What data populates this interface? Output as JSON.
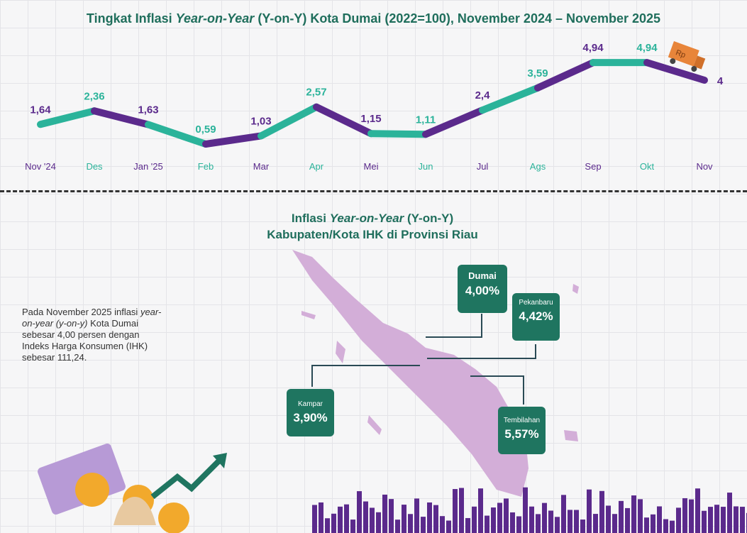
{
  "chart_title": {
    "prefix": "Tingkat Inflasi ",
    "italic": "Year-on-Year",
    "suffix": " (Y-on-Y) Kota Dumai (2022=100), November 2024 – November 2025"
  },
  "map_title": {
    "line1_prefix": "Inflasi ",
    "line1_italic": "Year-on-Year",
    "line1_suffix": " (Y-on-Y)",
    "line2": "Kabupaten/Kota IHK di Provinsi Riau"
  },
  "description": {
    "p1": "Pada November 2025 inflasi ",
    "i1": "year-on-year (y-on-y)",
    "p2": " Kota Dumai sebesar 4,00 persen dengan Indeks Harga Konsumen (IHK) sebesar 111,24."
  },
  "map_boxes": [
    {
      "name": "Dumai",
      "value": "4,00%"
    },
    {
      "name": "Pekanbaru",
      "value": "4,42%"
    },
    {
      "name": "Kampar",
      "value": "3,90%"
    },
    {
      "name": "Tembilahan",
      "value": "5,57%"
    }
  ],
  "colors": {
    "teal": "#2bb39a",
    "purple": "#5b2a8c",
    "dark_green": "#1f7560",
    "map": "#d3aed8"
  },
  "chart_data": {
    "type": "line",
    "title": "Tingkat Inflasi Year-on-Year (Y-on-Y) Kota Dumai (2022=100), November 2024 – November 2025",
    "categories": [
      "Nov '24",
      "Des",
      "Jan '25",
      "Feb",
      "Mar",
      "Apr",
      "Mei",
      "Jun",
      "Jul",
      "Ags",
      "Sep",
      "Okt",
      "Nov"
    ],
    "values": [
      1.64,
      2.36,
      1.63,
      0.59,
      1.03,
      2.57,
      1.15,
      1.11,
      2.4,
      3.59,
      4.94,
      4.94,
      4
    ],
    "labels": [
      "1,64",
      "2,36",
      "1,63",
      "0,59",
      "1,03",
      "2,57",
      "1,15",
      "1,11",
      "2,4",
      "3,59",
      "4,94",
      "4,94",
      "4"
    ],
    "xlabel": "",
    "ylabel": "",
    "grid": false
  }
}
